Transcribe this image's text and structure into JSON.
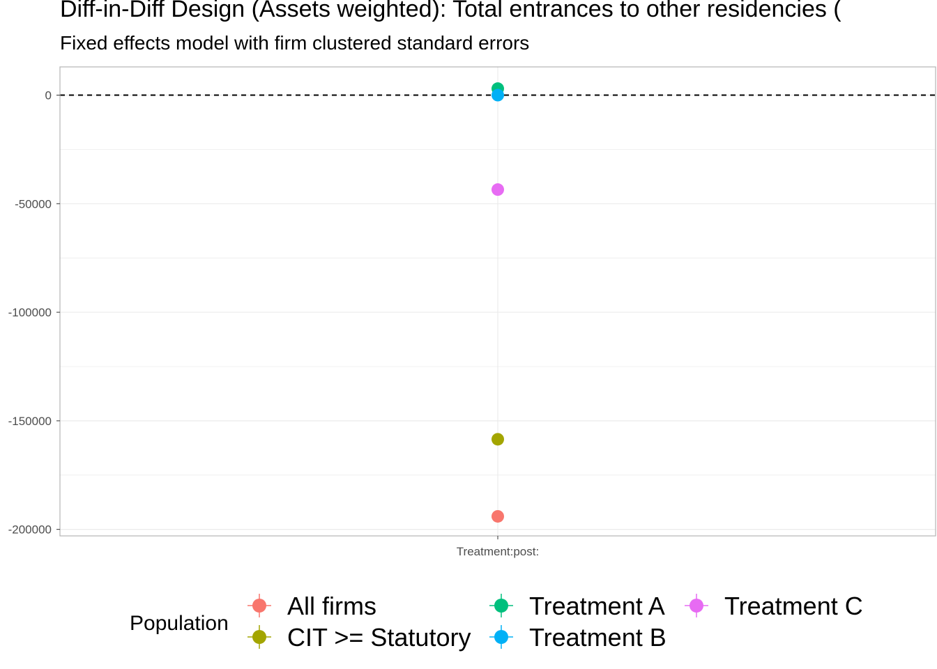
{
  "chart_data": {
    "type": "scatter",
    "title": "Diff-in-Diff Design (Assets weighted): Total entrances to other residencies (",
    "subtitle": "Fixed effects model with firm clustered standard errors",
    "xlabel": "",
    "ylabel": "",
    "categories": [
      "Treatment:post:"
    ],
    "ylim": [
      -203000,
      13000
    ],
    "y_ticks": [
      0,
      -50000,
      -100000,
      -150000,
      -200000
    ],
    "y_tick_labels": [
      "0",
      "-50000",
      "-100000",
      "-150000",
      "-200000"
    ],
    "reference_line": {
      "y": 0,
      "style": "dashed",
      "color": "#000000"
    },
    "grid": true,
    "legend": {
      "title": "Population",
      "position": "bottom"
    },
    "series": [
      {
        "name": "All firms",
        "color": "#F8766D",
        "values": [
          -194000
        ]
      },
      {
        "name": "CIT >= Statutory",
        "color": "#A3A500",
        "values": [
          -158500
        ]
      },
      {
        "name": "Treatment A",
        "color": "#00BF7D",
        "values": [
          3000
        ]
      },
      {
        "name": "Treatment B",
        "color": "#00B0F6",
        "values": [
          0
        ]
      },
      {
        "name": "Treatment C",
        "color": "#E76BF3",
        "values": [
          -43500
        ]
      }
    ]
  }
}
